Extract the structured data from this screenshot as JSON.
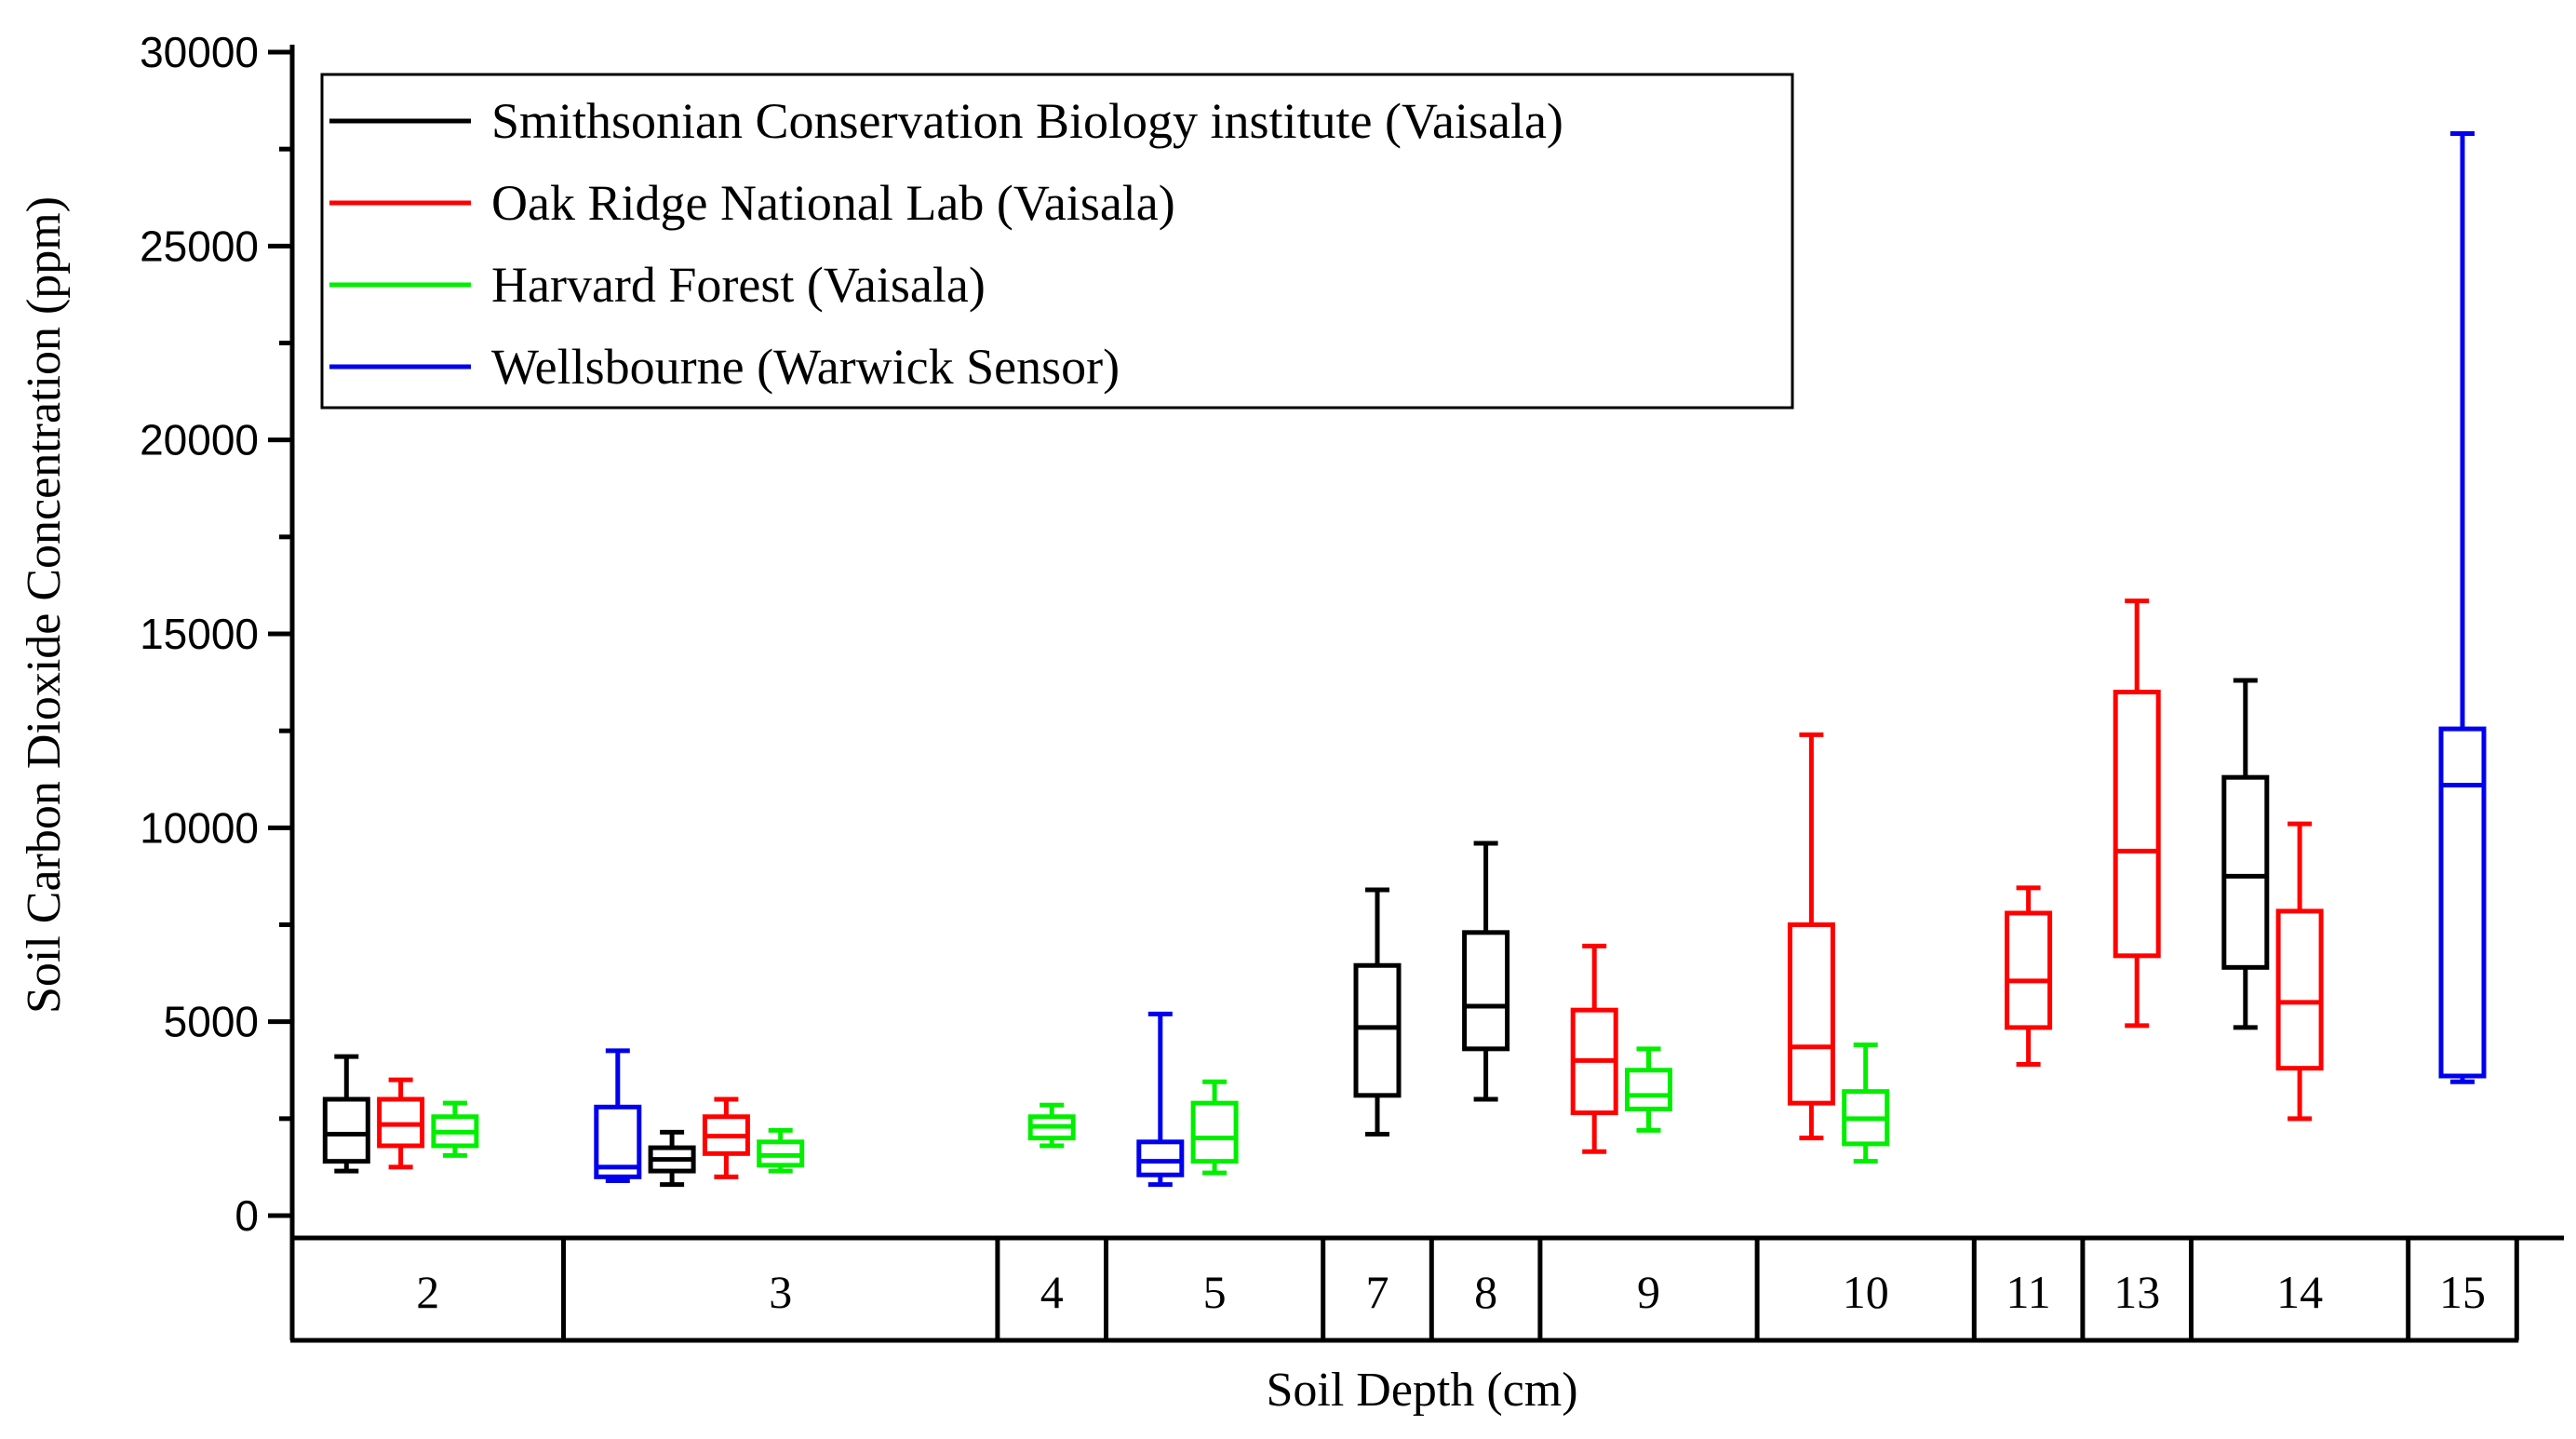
{
  "chart_data": {
    "type": "box",
    "title": "",
    "xlabel": "Soil Depth (cm)",
    "ylabel": "Soil Carbon Dioxide Concentration (ppm)",
    "ylim": [
      0,
      30000
    ],
    "yticks": [
      0,
      5000,
      10000,
      15000,
      20000,
      25000,
      30000
    ],
    "ytick_labels": [
      "0",
      "5000",
      "10000",
      "15000",
      "20000",
      "25000",
      "30000"
    ],
    "legend_position": "top-left",
    "series": [
      {
        "name": "Smithsonian Conservation Biology institute (Vaisala)",
        "color": "#000000"
      },
      {
        "name": "Oak Ridge National Lab (Vaisala)",
        "color": "#ff0000"
      },
      {
        "name": "Harvard Forest (Vaisala)",
        "color": "#00ee00"
      },
      {
        "name": "Wellsbourne (Warwick Sensor)",
        "color": "#0000ee"
      }
    ],
    "groups": [
      {
        "label": "2",
        "slots": 5
      },
      {
        "label": "3",
        "slots": 8
      },
      {
        "label": "4",
        "slots": 2
      },
      {
        "label": "5",
        "slots": 4
      },
      {
        "label": "7",
        "slots": 2
      },
      {
        "label": "8",
        "slots": 2
      },
      {
        "label": "9",
        "slots": 4
      },
      {
        "label": "10",
        "slots": 4
      },
      {
        "label": "11",
        "slots": 2
      },
      {
        "label": "13",
        "slots": 2
      },
      {
        "label": "14",
        "slots": 4
      },
      {
        "label": "15",
        "slots": 2
      }
    ],
    "boxes": [
      {
        "depth": "2",
        "series": 0,
        "slot": 1,
        "whisker_low": 1150,
        "q1": 1400,
        "median": 2100,
        "q3": 3000,
        "whisker_high": 4100
      },
      {
        "depth": "2",
        "series": 1,
        "slot": 2,
        "whisker_low": 1250,
        "q1": 1800,
        "median": 2350,
        "q3": 3000,
        "whisker_high": 3500
      },
      {
        "depth": "2",
        "series": 2,
        "slot": 3,
        "whisker_low": 1550,
        "q1": 1800,
        "median": 2150,
        "q3": 2550,
        "whisker_high": 2900
      },
      {
        "depth": "3",
        "series": 3,
        "slot": 1,
        "whisker_low": 900,
        "q1": 1000,
        "median": 1250,
        "q3": 2800,
        "whisker_high": 4250
      },
      {
        "depth": "3",
        "series": 0,
        "slot": 2,
        "whisker_low": 800,
        "q1": 1150,
        "median": 1450,
        "q3": 1750,
        "whisker_high": 2150
      },
      {
        "depth": "3",
        "series": 1,
        "slot": 3,
        "whisker_low": 1000,
        "q1": 1600,
        "median": 2050,
        "q3": 2550,
        "whisker_high": 3000
      },
      {
        "depth": "3",
        "series": 2,
        "slot": 4,
        "whisker_low": 1150,
        "q1": 1300,
        "median": 1550,
        "q3": 1900,
        "whisker_high": 2200
      },
      {
        "depth": "4",
        "series": 2,
        "slot": 1,
        "whisker_low": 1800,
        "q1": 2000,
        "median": 2300,
        "q3": 2550,
        "whisker_high": 2850
      },
      {
        "depth": "5",
        "series": 3,
        "slot": 1,
        "whisker_low": 800,
        "q1": 1050,
        "median": 1400,
        "q3": 1900,
        "whisker_high": 5200
      },
      {
        "depth": "5",
        "series": 2,
        "slot": 2,
        "whisker_low": 1100,
        "q1": 1400,
        "median": 2000,
        "q3": 2900,
        "whisker_high": 3450
      },
      {
        "depth": "7",
        "series": 0,
        "slot": 1,
        "whisker_low": 2100,
        "q1": 3100,
        "median": 4850,
        "q3": 6450,
        "whisker_high": 8400
      },
      {
        "depth": "8",
        "series": 0,
        "slot": 1,
        "whisker_low": 3000,
        "q1": 4300,
        "median": 5400,
        "q3": 7300,
        "whisker_high": 9600
      },
      {
        "depth": "9",
        "series": 1,
        "slot": 1,
        "whisker_low": 1650,
        "q1": 2650,
        "median": 4000,
        "q3": 5300,
        "whisker_high": 6950
      },
      {
        "depth": "9",
        "series": 2,
        "slot": 2,
        "whisker_low": 2200,
        "q1": 2750,
        "median": 3100,
        "q3": 3750,
        "whisker_high": 4300
      },
      {
        "depth": "10",
        "series": 1,
        "slot": 1,
        "whisker_low": 2000,
        "q1": 2900,
        "median": 4350,
        "q3": 7500,
        "whisker_high": 12400
      },
      {
        "depth": "10",
        "series": 2,
        "slot": 2,
        "whisker_low": 1400,
        "q1": 1850,
        "median": 2500,
        "q3": 3200,
        "whisker_high": 4400
      },
      {
        "depth": "11",
        "series": 1,
        "slot": 1,
        "whisker_low": 3900,
        "q1": 4850,
        "median": 6050,
        "q3": 7800,
        "whisker_high": 8450
      },
      {
        "depth": "13",
        "series": 1,
        "slot": 1,
        "whisker_low": 4900,
        "q1": 6700,
        "median": 9400,
        "q3": 13500,
        "whisker_high": 15850
      },
      {
        "depth": "14",
        "series": 0,
        "slot": 1,
        "whisker_low": 4850,
        "q1": 6400,
        "median": 8750,
        "q3": 11300,
        "whisker_high": 13800
      },
      {
        "depth": "14",
        "series": 1,
        "slot": 2,
        "whisker_low": 2500,
        "q1": 3800,
        "median": 5500,
        "q3": 7850,
        "whisker_high": 10100
      },
      {
        "depth": "15",
        "series": 3,
        "slot": 1,
        "whisker_low": 3450,
        "q1": 3600,
        "median": 11100,
        "q3": 12550,
        "whisker_high": 27900
      }
    ]
  }
}
